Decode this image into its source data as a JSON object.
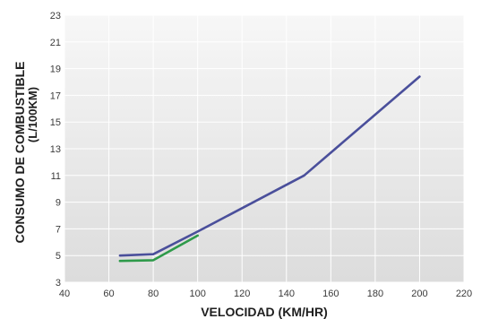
{
  "chart_data": {
    "type": "line",
    "title": "",
    "xlabel": "VELOCIDAD (KM/HR)",
    "ylabel": "CONSUMO DE COMBUSTIBLE",
    "ylabel_units": "(L/100KM)",
    "xlim": [
      40,
      220
    ],
    "ylim": [
      3,
      23
    ],
    "x_ticks": [
      40,
      60,
      80,
      100,
      120,
      140,
      160,
      180,
      200,
      220
    ],
    "y_ticks": [
      3,
      5,
      7,
      9,
      11,
      13,
      15,
      17,
      19,
      21,
      23
    ],
    "grid": true,
    "legend": "none",
    "series": [
      {
        "color": "#4a4f9b",
        "x": [
          65,
          80,
          100,
          148,
          200
        ],
        "y": [
          5.0,
          5.1,
          6.8,
          11.0,
          18.4
        ]
      },
      {
        "color": "#2e9a4a",
        "x": [
          65,
          80,
          100
        ],
        "y": [
          4.6,
          4.65,
          6.5
        ]
      }
    ]
  },
  "colors": {
    "plot_background_top": "#f7f7f7",
    "plot_background_bottom": "#dcdcdc",
    "gridline": "#ffffff"
  }
}
